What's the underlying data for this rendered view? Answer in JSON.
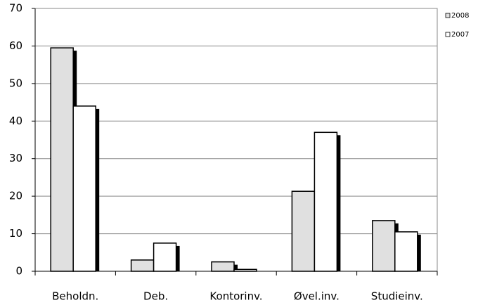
{
  "chart_data": {
    "type": "bar",
    "categories": [
      "Beholdn.",
      "Deb.",
      "Kontorinv.",
      "Øvel.inv.",
      "Studieinv."
    ],
    "series": [
      {
        "name": "2008",
        "color": "#e0e0e0",
        "values": [
          59.5,
          3,
          2.5,
          21.3,
          13.5
        ]
      },
      {
        "name": "2007",
        "color": "#ffffff",
        "values": [
          44,
          7.5,
          0.5,
          37,
          10.5
        ]
      }
    ],
    "ylim": [
      0,
      70
    ],
    "yticks": [
      0,
      10,
      20,
      30,
      40,
      50,
      60,
      70
    ],
    "grid": true,
    "legend": "right"
  }
}
